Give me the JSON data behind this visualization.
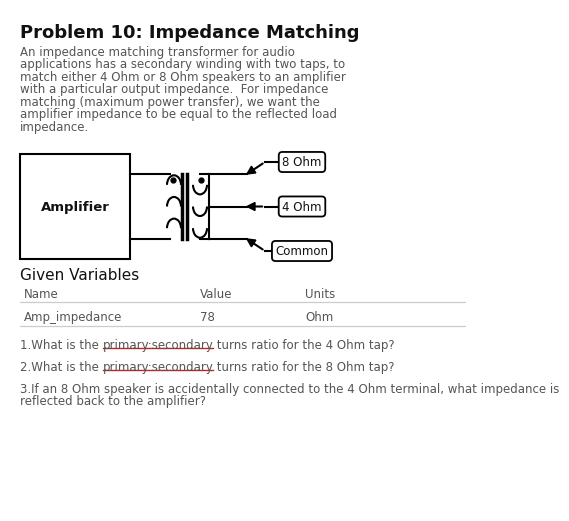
{
  "title": "Problem 10: Impedance Matching",
  "body_lines": [
    "An impedance matching transformer for audio",
    "applications has a secondary winding with two taps, to",
    "match either 4 Ohm or 8 Ohm speakers to an amplifier",
    "with a particular output impedance.  For impedance",
    "matching (maximum power transfer), we want the",
    "amplifier impedance to be equal to the reflected load",
    "impedance."
  ],
  "given_label": "Given Variables",
  "table_headers": [
    "Name",
    "Value",
    "Units"
  ],
  "table_data": [
    [
      "Amp_impedance",
      "78",
      "Ohm"
    ]
  ],
  "q1_parts": [
    "1.What is the ",
    "primary:secondary",
    " turns ratio for the 4 Ohm tap?"
  ],
  "q2_parts": [
    "2.What is the ",
    "primary:secondary",
    " turns ratio for the 8 Ohm tap?"
  ],
  "q3_line1": "3.If an 8 Ohm speaker is accidentally connected to the 4 Ohm terminal, what impedance is",
  "q3_line2": "reflected back to the amplifier?",
  "terminal_labels": [
    "8 Ohm",
    "4 Ohm",
    "Common"
  ],
  "amplifier_label": "Amplifier",
  "bg_color": "#ffffff",
  "text_color": "#555555",
  "title_color": "#111111",
  "underline_color": "#cc2222",
  "body_fontsize": 8.5,
  "title_fontsize": 13,
  "given_fontsize": 11,
  "table_fontsize": 8.5,
  "q_fontsize": 8.5
}
